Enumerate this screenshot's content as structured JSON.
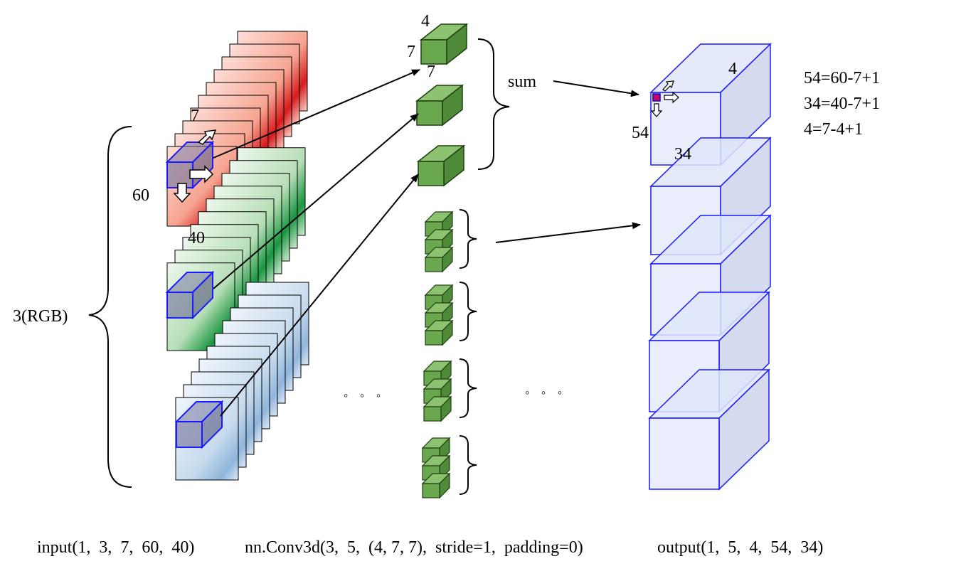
{
  "input": {
    "channels_label": "3(RGB)",
    "depth_label": "7",
    "height_label": "60",
    "width_label": "40",
    "channels": [
      {
        "name": "R",
        "color": "#d7191c",
        "light": "#fde0d9"
      },
      {
        "name": "G",
        "color": "#1a9641",
        "light": "#e3f4e3"
      },
      {
        "name": "B",
        "color": "#2b83ba",
        "light": "#dfeaf6"
      }
    ]
  },
  "kernel": {
    "depth_label": "4",
    "height_label": "7",
    "width_label": "7",
    "sum_label": "sum",
    "color": "#6aa84f"
  },
  "output": {
    "depth_label": "4",
    "height_label": "54",
    "width_label": "34",
    "equations": [
      "54=60-7+1",
      "34=40-7+1",
      "4=7-4+1"
    ],
    "color": "#0000cc"
  },
  "ellipsis": "◦ ◦ ◦",
  "captions": {
    "input": "input(1,  3,  7,  60,  40)",
    "conv": "nn.Conv3d(3,  5,  (4, 7, 7),  stride=1,  padding=0)",
    "output": "output(1,  5,  4,  54,  34)"
  }
}
